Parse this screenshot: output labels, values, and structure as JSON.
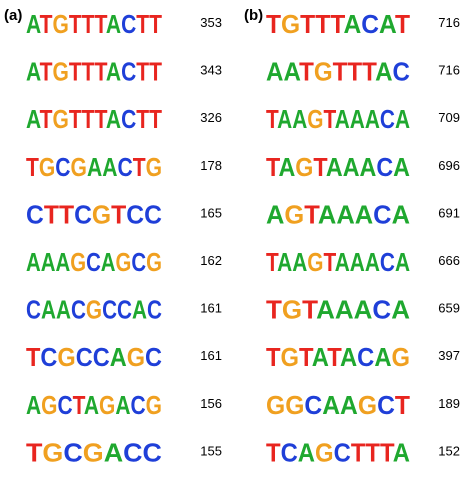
{
  "letter_colors": {
    "A": "#1fa82f",
    "C": "#1f3fd8",
    "G": "#f0a020",
    "T": "#e8251f"
  },
  "panels": [
    {
      "label": "(a)",
      "rows": [
        {
          "logo": "ATGTTTACTT",
          "count": "353"
        },
        {
          "logo": "ATGTTTACTT",
          "count": "343"
        },
        {
          "logo": "ATGTTTACTT",
          "count": "326"
        },
        {
          "logo": "TGCGAACTG",
          "count": "178"
        },
        {
          "logo": "CTTCGTCC",
          "count": "165"
        },
        {
          "logo": "AAAGCAGCG",
          "count": "162"
        },
        {
          "logo": "CAACGCCAC",
          "count": "161"
        },
        {
          "logo": "TCGCCAGC",
          "count": "161"
        },
        {
          "logo": "AGCTAGACG",
          "count": "156"
        },
        {
          "logo": "TGCGACC",
          "count": "155"
        }
      ]
    },
    {
      "label": "(b)",
      "rows": [
        {
          "logo": "TGTTTACAT",
          "count": "716"
        },
        {
          "logo": "AATGTTTAC",
          "count": "716"
        },
        {
          "logo": "TAAGTAAACA",
          "count": "709"
        },
        {
          "logo": "TAGTAAACA",
          "count": "696"
        },
        {
          "logo": "AGTAAACA",
          "count": "691"
        },
        {
          "logo": "TAAGTAAACA",
          "count": "666"
        },
        {
          "logo": "TGTAAACA",
          "count": "659"
        },
        {
          "logo": "TGTATACAG",
          "count": "397"
        },
        {
          "logo": "GGCAAGCT",
          "count": "189"
        },
        {
          "logo": "TCAGCTTTA",
          "count": "152"
        }
      ]
    }
  ]
}
